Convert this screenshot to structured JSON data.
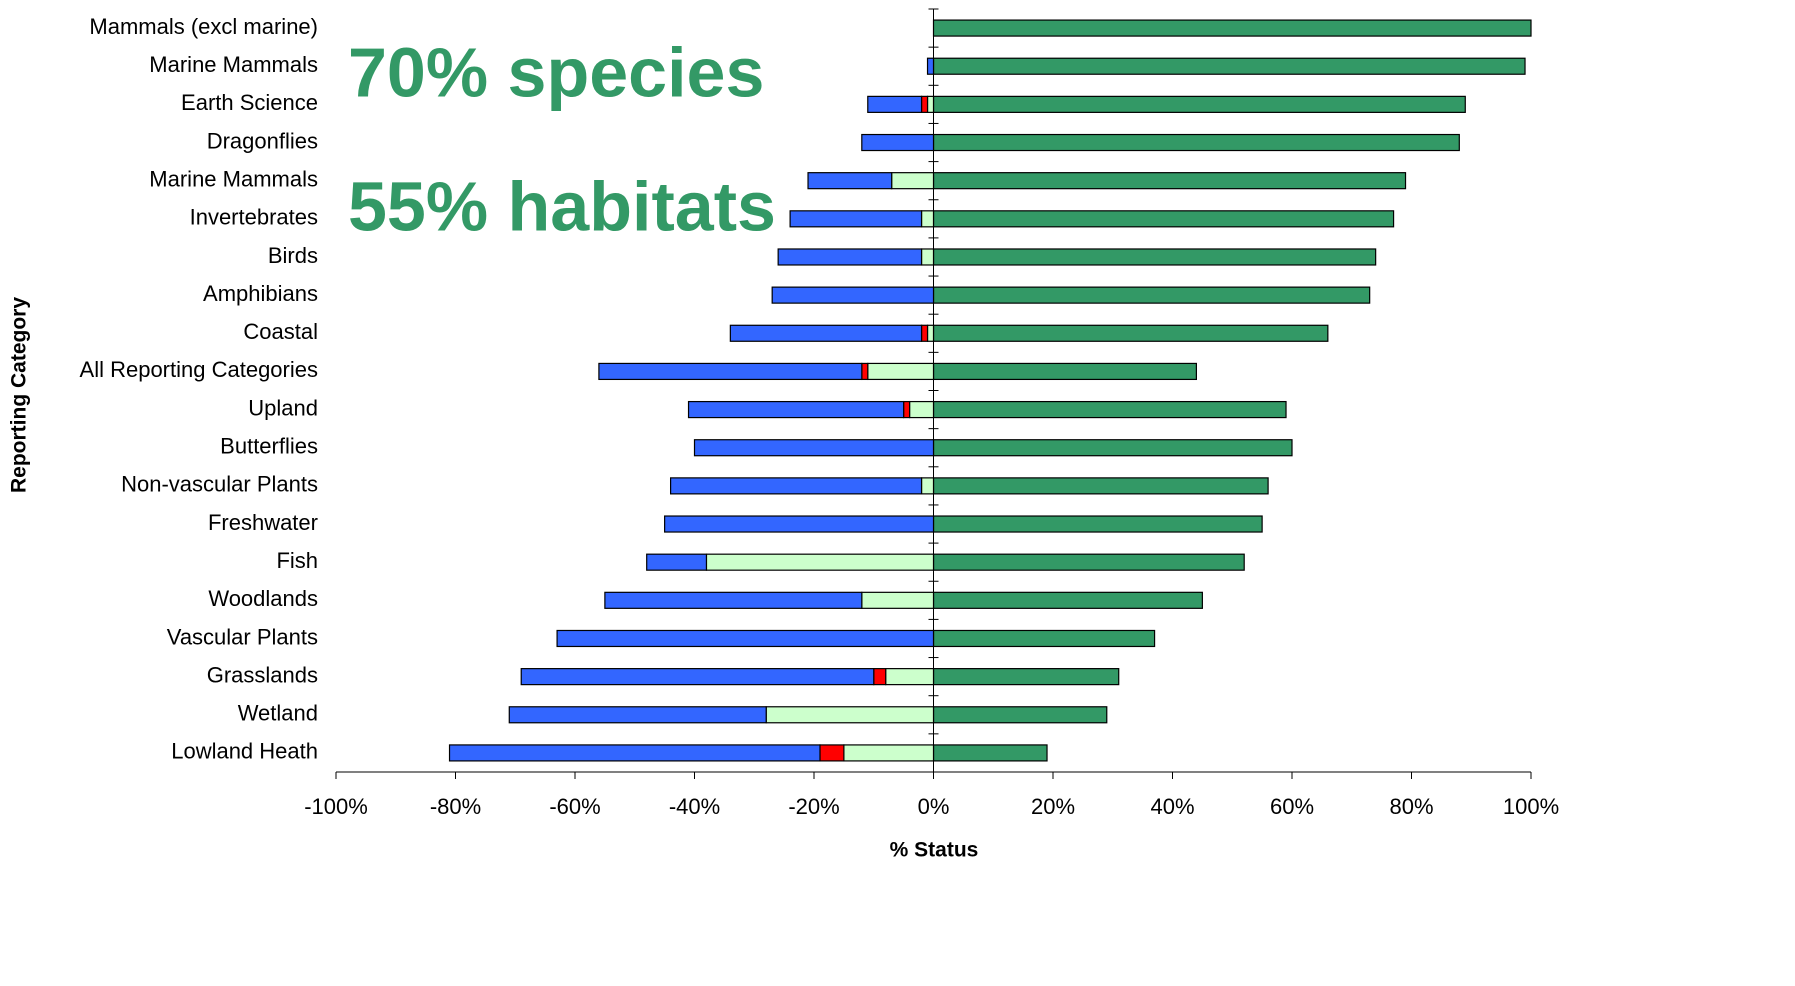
{
  "chart_data": {
    "type": "diverging-bar",
    "x_label": "% Status",
    "y_label": "Reporting Category",
    "annotations": [
      "70% species",
      "55% habitats"
    ],
    "categories": [
      "Mammals (excl marine)",
      "Marine Mammals",
      "Earth Science",
      "Dragonflies",
      "Marine Mammals",
      "Invertebrates",
      "Birds",
      "Amphibians",
      "Coastal",
      "All Reporting Categories",
      "Upland",
      "Butterflies",
      "Non-vascular Plants",
      "Freshwater",
      "Fish",
      "Woodlands",
      "Vascular Plants",
      "Grasslands",
      "Wetland",
      "Lowland Heath"
    ],
    "series": [
      {
        "color": "#339966",
        "values": [
          100,
          99,
          89,
          88,
          79,
          77,
          74,
          73,
          66,
          44,
          59,
          60,
          56,
          55,
          52,
          45,
          37,
          31,
          29,
          19
        ]
      },
      {
        "color": "#ccffcc",
        "values": [
          0,
          0,
          -1,
          0,
          -7,
          -2,
          -2,
          0,
          -1,
          -11,
          -4,
          0,
          -2,
          0,
          -38,
          -12,
          0,
          -8,
          -28,
          -15
        ]
      },
      {
        "color": "#ff0000",
        "values": [
          0,
          0,
          -1,
          0,
          0,
          0,
          0,
          0,
          -1,
          -1,
          -1,
          0,
          0,
          0,
          0,
          0,
          0,
          -2,
          0,
          -4
        ]
      },
      {
        "color": "#3366ff",
        "values": [
          0,
          -1,
          -9,
          -12,
          -14,
          -22,
          -24,
          -27,
          -32,
          -44,
          -36,
          -40,
          -42,
          -45,
          -10,
          -43,
          -63,
          -59,
          -43,
          -62
        ]
      }
    ],
    "xlim": [
      -100,
      100
    ],
    "xticks": [
      {
        "value": -100,
        "label": "-100%"
      },
      {
        "value": -80,
        "label": "-80%"
      },
      {
        "value": -60,
        "label": "-60%"
      },
      {
        "value": -40,
        "label": "-40%"
      },
      {
        "value": -20,
        "label": "-20%"
      },
      {
        "value": 0,
        "label": "0%"
      },
      {
        "value": 20,
        "label": "20%"
      },
      {
        "value": 40,
        "label": "40%"
      },
      {
        "value": 60,
        "label": "60%"
      },
      {
        "value": 80,
        "label": "80%"
      },
      {
        "value": 100,
        "label": "100%"
      }
    ]
  }
}
